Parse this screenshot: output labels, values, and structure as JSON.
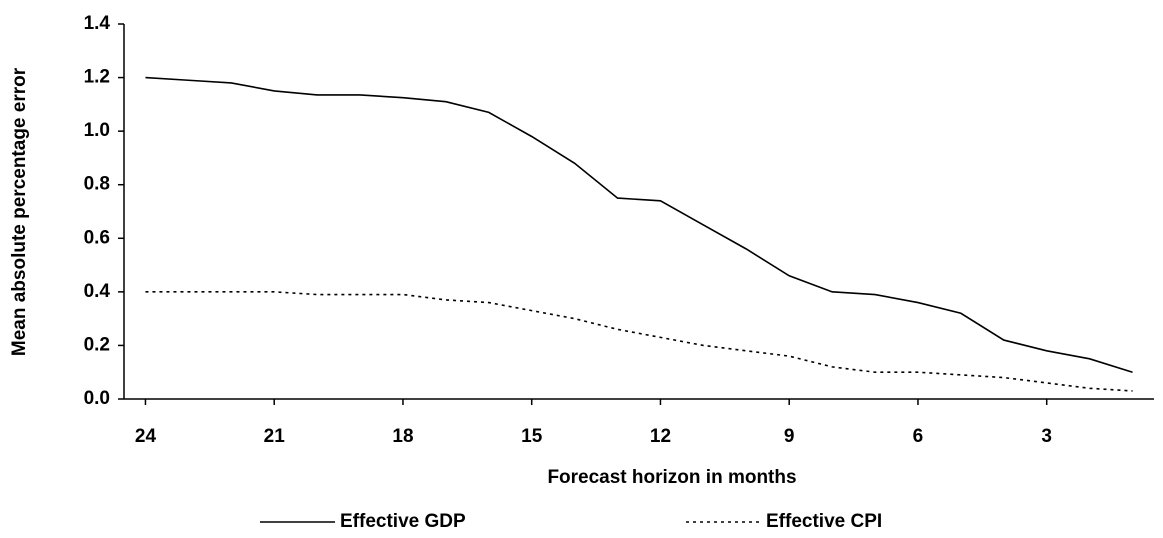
{
  "chart_data": {
    "type": "line",
    "x_label": "Forecast horizon in months",
    "y_label": "Mean absolute percentage error",
    "x": [
      24,
      23,
      22,
      21,
      20,
      19,
      18,
      17,
      16,
      15,
      14,
      13,
      12,
      11,
      10,
      9,
      8,
      7,
      6,
      5,
      4,
      3,
      2,
      1
    ],
    "xlim": [
      24.5,
      0.5
    ],
    "xticks": [
      24,
      21,
      18,
      15,
      12,
      9,
      6,
      3
    ],
    "ylim": [
      0,
      1.4
    ],
    "yticks": [
      {
        "value": 0,
        "label": "0.0"
      },
      0.2,
      0.4,
      0.6,
      0.8,
      {
        "value": 1,
        "label": "1.0"
      },
      1.2,
      1.4
    ],
    "legend": "bottom",
    "series": [
      {
        "name": "Effective GDP",
        "color": "#000000",
        "dash": "solid",
        "values": [
          1.2,
          1.19,
          1.18,
          1.15,
          1.135,
          1.135,
          1.125,
          1.11,
          1.07,
          0.98,
          0.88,
          0.75,
          0.74,
          0.65,
          0.56,
          0.46,
          0.4,
          0.39,
          0.36,
          0.32,
          0.22,
          0.18,
          0.15,
          0.1
        ]
      },
      {
        "name": "Effective CPI",
        "color": "#000000",
        "dash": "dashed",
        "values": [
          0.4,
          0.4,
          0.4,
          0.4,
          0.39,
          0.39,
          0.39,
          0.37,
          0.36,
          0.33,
          0.3,
          0.26,
          0.23,
          0.2,
          0.18,
          0.16,
          0.12,
          0.1,
          0.1,
          0.09,
          0.08,
          0.06,
          0.04,
          0.03
        ]
      }
    ]
  }
}
